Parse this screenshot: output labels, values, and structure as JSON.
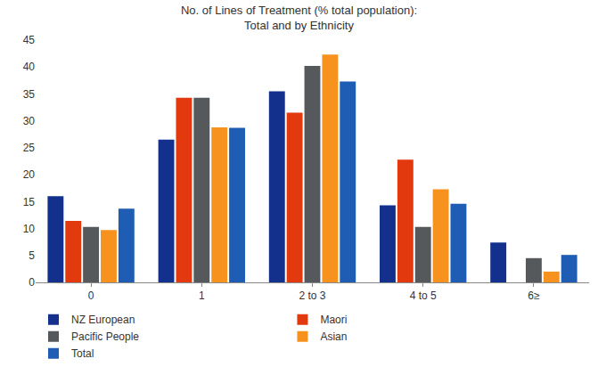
{
  "chart_data": {
    "type": "bar",
    "title": "No. of Lines of Treatment (% total population):\nTotal and by Ethnicity",
    "categories": [
      "0",
      "1",
      "2 to 3",
      "4 to 5",
      "6≥"
    ],
    "series": [
      {
        "name": "NZ European",
        "color": "#13318c",
        "values": [
          16,
          26.5,
          35.5,
          14.3,
          7.4
        ]
      },
      {
        "name": "Maori",
        "color": "#e2390f",
        "values": [
          11.4,
          34.3,
          31.5,
          22.8,
          0
        ]
      },
      {
        "name": "Pacific People",
        "color": "#55595c",
        "values": [
          10.3,
          34.3,
          40.2,
          10.3,
          4.5
        ]
      },
      {
        "name": "Asian",
        "color": "#f7921e",
        "values": [
          9.7,
          28.8,
          42.3,
          17.3,
          2
        ]
      },
      {
        "name": "Total",
        "color": "#1f5db5",
        "values": [
          13.7,
          28.7,
          37.3,
          14.6,
          5.1
        ]
      }
    ],
    "ylim": [
      0,
      45
    ],
    "yticks": [
      0,
      5,
      10,
      15,
      20,
      25,
      30,
      35,
      40,
      45
    ],
    "grid": false,
    "legend": "bottom"
  }
}
